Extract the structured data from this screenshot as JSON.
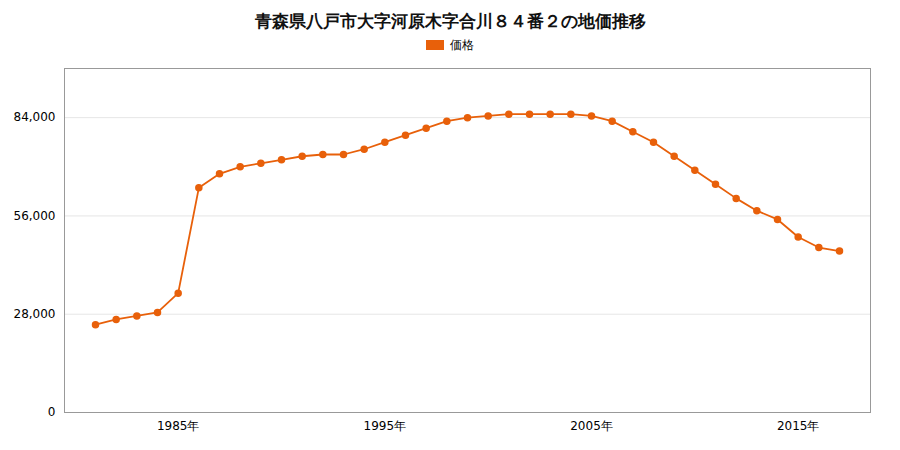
{
  "chart_data": {
    "type": "line",
    "title": "青森県八戸市大字河原木字合川８４番２の地価推移",
    "x": [
      1981,
      1982,
      1983,
      1984,
      1985,
      1986,
      1987,
      1988,
      1989,
      1990,
      1991,
      1992,
      1993,
      1994,
      1995,
      1996,
      1997,
      1998,
      1999,
      2000,
      2001,
      2002,
      2003,
      2004,
      2005,
      2006,
      2007,
      2008,
      2009,
      2010,
      2011,
      2012,
      2013,
      2014,
      2015,
      2016,
      2017
    ],
    "series": [
      {
        "name": "価格",
        "color": "#e8600a",
        "values": [
          25000,
          26500,
          27500,
          28500,
          34000,
          64000,
          68000,
          70000,
          71000,
          72000,
          73000,
          73500,
          73500,
          75000,
          77000,
          79000,
          81000,
          83000,
          84000,
          84500,
          85000,
          85000,
          85000,
          85000,
          84500,
          83000,
          80000,
          77000,
          73000,
          69000,
          65000,
          61000,
          57500,
          55000,
          50000,
          47000,
          46000
        ]
      }
    ],
    "xlim": [
      1979.5,
      2018.5
    ],
    "xticks": [
      {
        "value": 1985,
        "label": "1985年"
      },
      {
        "value": 1995,
        "label": "1995年"
      },
      {
        "value": 2005,
        "label": "2005年"
      },
      {
        "value": 2015,
        "label": "2015年"
      }
    ],
    "ylim": [
      0,
      98000
    ],
    "yticks": [
      0,
      {
        "value": 28000,
        "label": "28,000"
      },
      {
        "value": 56000,
        "label": "56,000"
      },
      {
        "value": 84000,
        "label": "84,000"
      }
    ],
    "grid": true,
    "legend": "top",
    "marker": "circle"
  }
}
